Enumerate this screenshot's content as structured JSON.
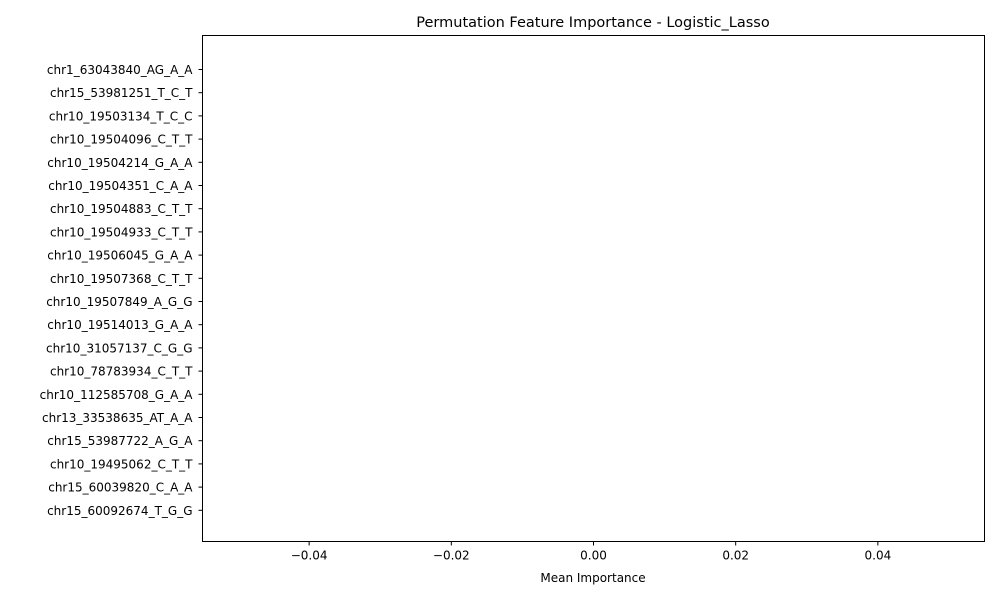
{
  "chart_data": {
    "type": "bar",
    "orientation": "horizontal",
    "title": "Permutation Feature Importance - Logistic_Lasso",
    "xlabel": "Mean Importance",
    "ylabel": "",
    "xlim": [
      -0.055,
      0.055
    ],
    "xticks": [
      -0.04,
      -0.02,
      0.0,
      0.02,
      0.04
    ],
    "xtick_labels": [
      "−0.04",
      "−0.02",
      "0.00",
      "0.02",
      "0.04"
    ],
    "grid": false,
    "legend": "none",
    "categories": [
      "chr1_63043840_AG_A_A",
      "chr15_53981251_T_C_T",
      "chr10_19503134_T_C_C",
      "chr10_19504096_C_T_T",
      "chr10_19504214_G_A_A",
      "chr10_19504351_C_A_A",
      "chr10_19504883_C_T_T",
      "chr10_19504933_C_T_T",
      "chr10_19506045_G_A_A",
      "chr10_19507368_C_T_T",
      "chr10_19507849_A_G_G",
      "chr10_19514013_G_A_A",
      "chr10_31057137_C_G_G",
      "chr10_78783934_C_T_T",
      "chr10_112585708_G_A_A",
      "chr13_33538635_AT_A_A",
      "chr15_53987722_A_G_A",
      "chr10_19495062_C_T_T",
      "chr15_60039820_C_A_A",
      "chr15_60092674_T_G_G"
    ],
    "values": [
      0,
      0,
      0,
      0,
      0,
      0,
      0,
      0,
      0,
      0,
      0,
      0,
      0,
      0,
      0,
      0,
      0,
      0,
      0,
      0
    ],
    "bar_color": "#1f77b4"
  }
}
